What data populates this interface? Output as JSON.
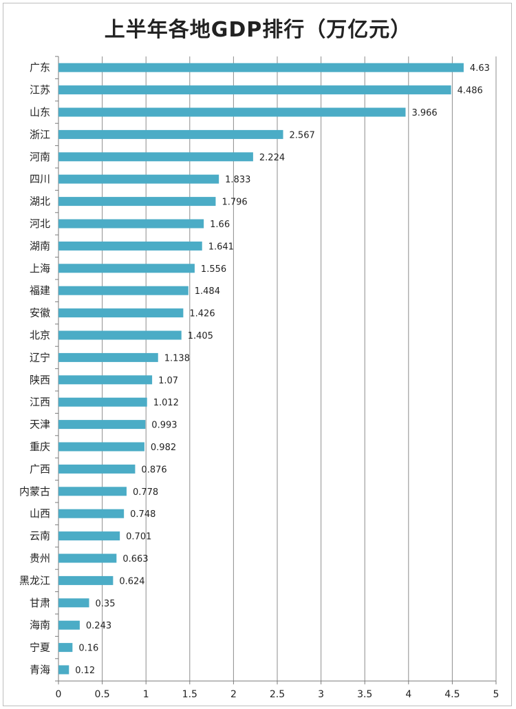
{
  "chart_data": {
    "type": "bar",
    "orientation": "horizontal",
    "title": "上半年各地GDP排行（万亿元）",
    "categories": [
      "广东",
      "江苏",
      "山东",
      "浙江",
      "河南",
      "四川",
      "湖北",
      "河北",
      "湖南",
      "上海",
      "福建",
      "安徽",
      "北京",
      "辽宁",
      "陕西",
      "江西",
      "天津",
      "重庆",
      "广西",
      "内蒙古",
      "山西",
      "云南",
      "贵州",
      "黑龙江",
      "甘肃",
      "海南",
      "宁夏",
      "青海"
    ],
    "values": [
      4.63,
      4.486,
      3.966,
      2.567,
      2.224,
      1.833,
      1.796,
      1.66,
      1.641,
      1.556,
      1.484,
      1.426,
      1.405,
      1.138,
      1.07,
      1.012,
      0.993,
      0.982,
      0.876,
      0.778,
      0.748,
      0.701,
      0.663,
      0.624,
      0.35,
      0.243,
      0.16,
      0.12
    ],
    "value_labels": [
      "4.63",
      "4.486",
      "3.966",
      "2.567",
      "2.224",
      "1.833",
      "1.796",
      "1.66",
      "1.641",
      "1.556",
      "1.484",
      "1.426",
      "1.405",
      "1.138",
      "1.07",
      "1.012",
      "0.993",
      "0.982",
      "0.876",
      "0.778",
      "0.748",
      "0.701",
      "0.663",
      "0.624",
      "0.35",
      "0.243",
      "0.16",
      "0.12"
    ],
    "x_ticks": [
      "0",
      "0.5",
      "1",
      "1.5",
      "2",
      "2.5",
      "3",
      "3.5",
      "4",
      "4.5",
      "5"
    ],
    "xlim": [
      0,
      5
    ],
    "xlabel": "",
    "ylabel": "",
    "grid": "vertical",
    "legend": "none",
    "bar_color": "#4bacc6",
    "grid_color": "#8c8c8c"
  }
}
